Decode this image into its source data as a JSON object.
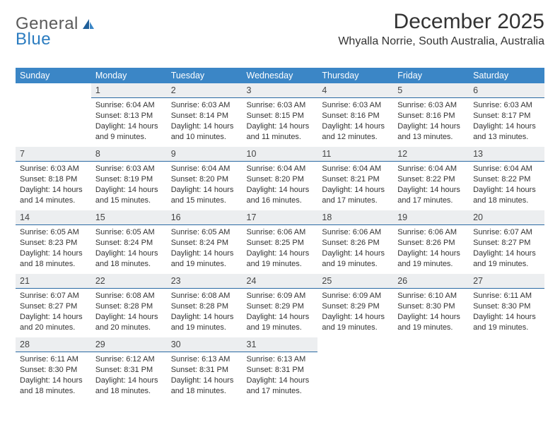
{
  "logo": {
    "general": "General",
    "blue": "Blue"
  },
  "header": {
    "month_title": "December 2025",
    "location": "Whyalla Norrie, South Australia, Australia"
  },
  "colors": {
    "header_bg": "#3b86c6",
    "header_text": "#ffffff",
    "daynum_bg": "#eceef0",
    "daynum_border": "#2b6aa3",
    "body_text": "#333333",
    "logo_gray": "#5a5a5a",
    "logo_blue": "#2b7cc0"
  },
  "weekdays": [
    "Sunday",
    "Monday",
    "Tuesday",
    "Wednesday",
    "Thursday",
    "Friday",
    "Saturday"
  ],
  "weeks": [
    [
      {
        "blank": true
      },
      {
        "day": "1",
        "sunrise": "Sunrise: 6:04 AM",
        "sunset": "Sunset: 8:13 PM",
        "dl1": "Daylight: 14 hours",
        "dl2": "and 9 minutes."
      },
      {
        "day": "2",
        "sunrise": "Sunrise: 6:03 AM",
        "sunset": "Sunset: 8:14 PM",
        "dl1": "Daylight: 14 hours",
        "dl2": "and 10 minutes."
      },
      {
        "day": "3",
        "sunrise": "Sunrise: 6:03 AM",
        "sunset": "Sunset: 8:15 PM",
        "dl1": "Daylight: 14 hours",
        "dl2": "and 11 minutes."
      },
      {
        "day": "4",
        "sunrise": "Sunrise: 6:03 AM",
        "sunset": "Sunset: 8:16 PM",
        "dl1": "Daylight: 14 hours",
        "dl2": "and 12 minutes."
      },
      {
        "day": "5",
        "sunrise": "Sunrise: 6:03 AM",
        "sunset": "Sunset: 8:16 PM",
        "dl1": "Daylight: 14 hours",
        "dl2": "and 13 minutes."
      },
      {
        "day": "6",
        "sunrise": "Sunrise: 6:03 AM",
        "sunset": "Sunset: 8:17 PM",
        "dl1": "Daylight: 14 hours",
        "dl2": "and 13 minutes."
      }
    ],
    [
      {
        "day": "7",
        "sunrise": "Sunrise: 6:03 AM",
        "sunset": "Sunset: 8:18 PM",
        "dl1": "Daylight: 14 hours",
        "dl2": "and 14 minutes."
      },
      {
        "day": "8",
        "sunrise": "Sunrise: 6:03 AM",
        "sunset": "Sunset: 8:19 PM",
        "dl1": "Daylight: 14 hours",
        "dl2": "and 15 minutes."
      },
      {
        "day": "9",
        "sunrise": "Sunrise: 6:04 AM",
        "sunset": "Sunset: 8:20 PM",
        "dl1": "Daylight: 14 hours",
        "dl2": "and 15 minutes."
      },
      {
        "day": "10",
        "sunrise": "Sunrise: 6:04 AM",
        "sunset": "Sunset: 8:20 PM",
        "dl1": "Daylight: 14 hours",
        "dl2": "and 16 minutes."
      },
      {
        "day": "11",
        "sunrise": "Sunrise: 6:04 AM",
        "sunset": "Sunset: 8:21 PM",
        "dl1": "Daylight: 14 hours",
        "dl2": "and 17 minutes."
      },
      {
        "day": "12",
        "sunrise": "Sunrise: 6:04 AM",
        "sunset": "Sunset: 8:22 PM",
        "dl1": "Daylight: 14 hours",
        "dl2": "and 17 minutes."
      },
      {
        "day": "13",
        "sunrise": "Sunrise: 6:04 AM",
        "sunset": "Sunset: 8:22 PM",
        "dl1": "Daylight: 14 hours",
        "dl2": "and 18 minutes."
      }
    ],
    [
      {
        "day": "14",
        "sunrise": "Sunrise: 6:05 AM",
        "sunset": "Sunset: 8:23 PM",
        "dl1": "Daylight: 14 hours",
        "dl2": "and 18 minutes."
      },
      {
        "day": "15",
        "sunrise": "Sunrise: 6:05 AM",
        "sunset": "Sunset: 8:24 PM",
        "dl1": "Daylight: 14 hours",
        "dl2": "and 18 minutes."
      },
      {
        "day": "16",
        "sunrise": "Sunrise: 6:05 AM",
        "sunset": "Sunset: 8:24 PM",
        "dl1": "Daylight: 14 hours",
        "dl2": "and 19 minutes."
      },
      {
        "day": "17",
        "sunrise": "Sunrise: 6:06 AM",
        "sunset": "Sunset: 8:25 PM",
        "dl1": "Daylight: 14 hours",
        "dl2": "and 19 minutes."
      },
      {
        "day": "18",
        "sunrise": "Sunrise: 6:06 AM",
        "sunset": "Sunset: 8:26 PM",
        "dl1": "Daylight: 14 hours",
        "dl2": "and 19 minutes."
      },
      {
        "day": "19",
        "sunrise": "Sunrise: 6:06 AM",
        "sunset": "Sunset: 8:26 PM",
        "dl1": "Daylight: 14 hours",
        "dl2": "and 19 minutes."
      },
      {
        "day": "20",
        "sunrise": "Sunrise: 6:07 AM",
        "sunset": "Sunset: 8:27 PM",
        "dl1": "Daylight: 14 hours",
        "dl2": "and 19 minutes."
      }
    ],
    [
      {
        "day": "21",
        "sunrise": "Sunrise: 6:07 AM",
        "sunset": "Sunset: 8:27 PM",
        "dl1": "Daylight: 14 hours",
        "dl2": "and 20 minutes."
      },
      {
        "day": "22",
        "sunrise": "Sunrise: 6:08 AM",
        "sunset": "Sunset: 8:28 PM",
        "dl1": "Daylight: 14 hours",
        "dl2": "and 20 minutes."
      },
      {
        "day": "23",
        "sunrise": "Sunrise: 6:08 AM",
        "sunset": "Sunset: 8:28 PM",
        "dl1": "Daylight: 14 hours",
        "dl2": "and 19 minutes."
      },
      {
        "day": "24",
        "sunrise": "Sunrise: 6:09 AM",
        "sunset": "Sunset: 8:29 PM",
        "dl1": "Daylight: 14 hours",
        "dl2": "and 19 minutes."
      },
      {
        "day": "25",
        "sunrise": "Sunrise: 6:09 AM",
        "sunset": "Sunset: 8:29 PM",
        "dl1": "Daylight: 14 hours",
        "dl2": "and 19 minutes."
      },
      {
        "day": "26",
        "sunrise": "Sunrise: 6:10 AM",
        "sunset": "Sunset: 8:30 PM",
        "dl1": "Daylight: 14 hours",
        "dl2": "and 19 minutes."
      },
      {
        "day": "27",
        "sunrise": "Sunrise: 6:11 AM",
        "sunset": "Sunset: 8:30 PM",
        "dl1": "Daylight: 14 hours",
        "dl2": "and 19 minutes."
      }
    ],
    [
      {
        "day": "28",
        "sunrise": "Sunrise: 6:11 AM",
        "sunset": "Sunset: 8:30 PM",
        "dl1": "Daylight: 14 hours",
        "dl2": "and 18 minutes."
      },
      {
        "day": "29",
        "sunrise": "Sunrise: 6:12 AM",
        "sunset": "Sunset: 8:31 PM",
        "dl1": "Daylight: 14 hours",
        "dl2": "and 18 minutes."
      },
      {
        "day": "30",
        "sunrise": "Sunrise: 6:13 AM",
        "sunset": "Sunset: 8:31 PM",
        "dl1": "Daylight: 14 hours",
        "dl2": "and 18 minutes."
      },
      {
        "day": "31",
        "sunrise": "Sunrise: 6:13 AM",
        "sunset": "Sunset: 8:31 PM",
        "dl1": "Daylight: 14 hours",
        "dl2": "and 17 minutes."
      },
      {
        "blank": true
      },
      {
        "blank": true
      },
      {
        "blank": true
      }
    ]
  ]
}
